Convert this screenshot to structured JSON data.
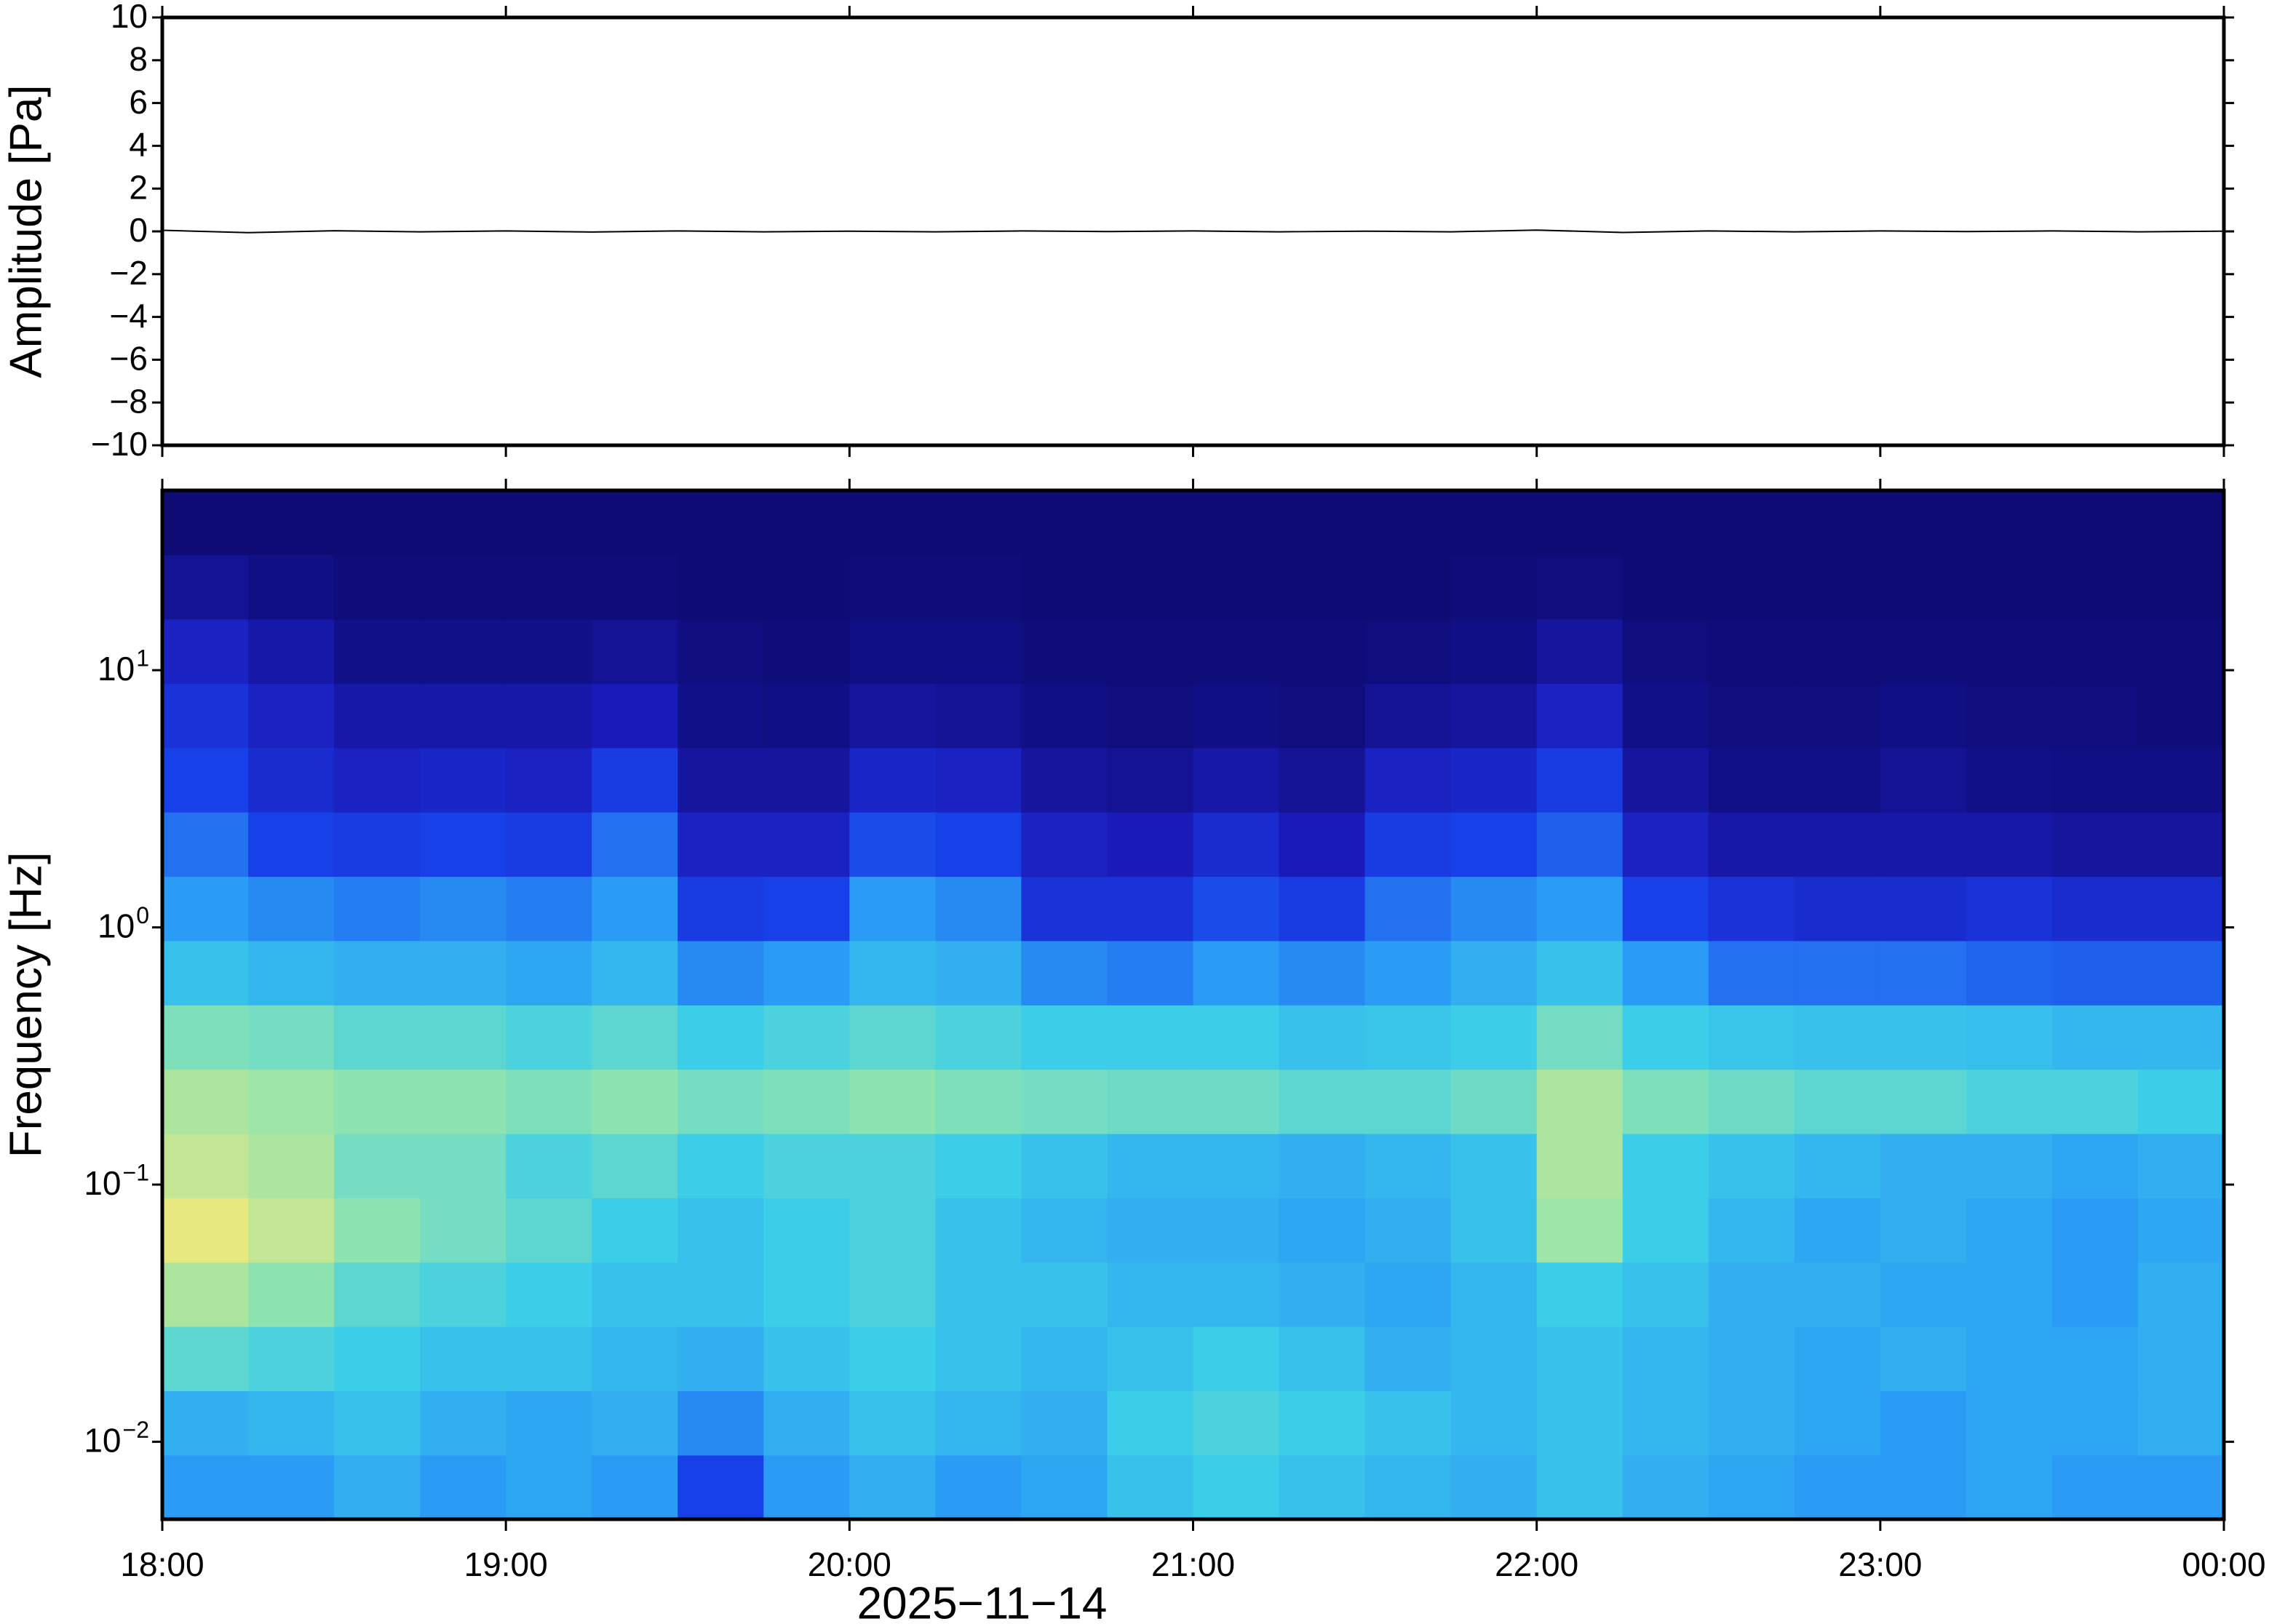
{
  "chart_data": [
    {
      "type": "line",
      "ylabel": "Amplitude [Pa]",
      "color": "#000000",
      "x": [
        18,
        18.25,
        18.5,
        18.75,
        19,
        19.25,
        19.5,
        19.75,
        20,
        20.25,
        20.5,
        20.75,
        21,
        21.25,
        21.5,
        21.75,
        22,
        22.25,
        22.5,
        22.75,
        23,
        23.25,
        23.5,
        23.75,
        24
      ],
      "values": [
        0.05,
        -0.06,
        0.03,
        -0.02,
        0.02,
        -0.03,
        0.02,
        -0.02,
        0.01,
        -0.02,
        0.02,
        -0.01,
        0.02,
        -0.02,
        0.01,
        -0.02,
        0.06,
        -0.05,
        0.02,
        -0.02,
        0.02,
        -0.01,
        0.02,
        -0.02,
        0.01
      ],
      "xlim": [
        18,
        24
      ],
      "ylim": [
        -10,
        10
      ],
      "xticks": [
        18,
        19,
        20,
        21,
        22,
        23,
        24
      ],
      "yticks": [
        {
          "value": -10,
          "label": "−10"
        },
        {
          "value": -8,
          "label": "−8"
        },
        {
          "value": -6,
          "label": "−6"
        },
        {
          "value": -4,
          "label": "−4"
        },
        {
          "value": -2,
          "label": "−2"
        },
        0,
        2,
        4,
        6,
        8,
        10
      ]
    },
    {
      "type": "heatmap",
      "ylabel": "Frequency [Hz]",
      "xlabel": "2025−11−14",
      "xlim": [
        18,
        24
      ],
      "ylim": [
        0.005,
        50
      ],
      "yscale": "log",
      "xticks": [
        {
          "value": 18,
          "label": "18:00"
        },
        {
          "value": 19,
          "label": "19:00"
        },
        {
          "value": 20,
          "label": "20:00"
        },
        {
          "value": 21,
          "label": "21:00"
        },
        {
          "value": 22,
          "label": "22:00"
        },
        {
          "value": 23,
          "label": "23:00"
        },
        {
          "value": 24,
          "label": "00:00"
        }
      ],
      "yticks": [
        {
          "value": 0.01,
          "label": "10",
          "exponent": "−2"
        },
        {
          "value": 0.1,
          "label": "10",
          "exponent": "−1"
        },
        {
          "value": 1,
          "label": "10",
          "exponent": "0"
        },
        {
          "value": 10,
          "label": "10",
          "exponent": "1"
        }
      ],
      "colormap": [
        {
          "value": 0,
          "color": "#0c0a6a"
        },
        {
          "value": 15,
          "color": "#1a1ab8"
        },
        {
          "value": 30,
          "color": "#1840e8"
        },
        {
          "value": 45,
          "color": "#2a9cf5"
        },
        {
          "value": 58,
          "color": "#3ccde8"
        },
        {
          "value": 68,
          "color": "#8ee4b0"
        },
        {
          "value": 80,
          "color": "#e8e880"
        },
        {
          "value": 100,
          "color": "#f0c060"
        }
      ],
      "z": [
        [
          45,
          45,
          50,
          45,
          48,
          45,
          30,
          45,
          50,
          45,
          48,
          55,
          58,
          55,
          52,
          50,
          55,
          50,
          48,
          45,
          45,
          48,
          45,
          45
        ],
        [
          50,
          52,
          55,
          50,
          48,
          50,
          42,
          50,
          55,
          52,
          50,
          58,
          60,
          58,
          55,
          52,
          55,
          52,
          50,
          48,
          45,
          48,
          48,
          50
        ],
        [
          62,
          60,
          58,
          55,
          55,
          52,
          50,
          55,
          58,
          55,
          52,
          55,
          58,
          55,
          50,
          52,
          55,
          52,
          50,
          48,
          50,
          48,
          48,
          50
        ],
        [
          72,
          68,
          62,
          60,
          58,
          55,
          55,
          58,
          60,
          55,
          55,
          52,
          52,
          50,
          48,
          52,
          58,
          55,
          50,
          50,
          48,
          48,
          45,
          50
        ],
        [
          80,
          75,
          68,
          65,
          62,
          58,
          55,
          58,
          60,
          55,
          52,
          50,
          50,
          48,
          50,
          55,
          70,
          58,
          52,
          48,
          50,
          48,
          45,
          48
        ],
        [
          75,
          72,
          65,
          65,
          60,
          62,
          58,
          60,
          60,
          58,
          55,
          52,
          52,
          50,
          52,
          55,
          72,
          58,
          55,
          52,
          50,
          50,
          48,
          50
        ],
        [
          72,
          70,
          68,
          68,
          66,
          68,
          65,
          66,
          68,
          66,
          65,
          64,
          64,
          62,
          62,
          64,
          72,
          66,
          64,
          62,
          62,
          60,
          60,
          58
        ],
        [
          66,
          65,
          62,
          62,
          60,
          62,
          58,
          60,
          62,
          60,
          58,
          58,
          58,
          55,
          56,
          58,
          65,
          58,
          56,
          55,
          55,
          54,
          52,
          52
        ],
        [
          55,
          52,
          50,
          50,
          48,
          52,
          42,
          45,
          52,
          50,
          42,
          40,
          45,
          42,
          45,
          50,
          55,
          45,
          38,
          38,
          38,
          36,
          35,
          35
        ],
        [
          45,
          42,
          40,
          42,
          40,
          45,
          28,
          30,
          45,
          42,
          25,
          25,
          32,
          28,
          38,
          42,
          45,
          30,
          25,
          22,
          22,
          25,
          22,
          22
        ],
        [
          38,
          30,
          28,
          30,
          28,
          38,
          18,
          18,
          32,
          30,
          18,
          15,
          22,
          15,
          28,
          30,
          35,
          18,
          12,
          12,
          12,
          12,
          10,
          10
        ],
        [
          30,
          22,
          18,
          20,
          18,
          28,
          10,
          10,
          20,
          18,
          10,
          8,
          12,
          8,
          18,
          20,
          28,
          10,
          6,
          6,
          8,
          6,
          5,
          5
        ],
        [
          25,
          18,
          12,
          12,
          12,
          15,
          6,
          5,
          10,
          8,
          5,
          4,
          5,
          4,
          8,
          10,
          18,
          6,
          4,
          4,
          5,
          4,
          4,
          3
        ],
        [
          18,
          12,
          6,
          6,
          6,
          8,
          4,
          3,
          5,
          5,
          3,
          3,
          3,
          3,
          4,
          5,
          10,
          4,
          3,
          3,
          3,
          3,
          3,
          3
        ],
        [
          8,
          5,
          3,
          3,
          3,
          3,
          2,
          2,
          3,
          3,
          2,
          2,
          2,
          2,
          2,
          3,
          4,
          2,
          2,
          2,
          2,
          2,
          2,
          2
        ],
        [
          2,
          2,
          2,
          2,
          2,
          2,
          2,
          2,
          2,
          2,
          2,
          2,
          2,
          2,
          2,
          2,
          2,
          2,
          2,
          2,
          2,
          2,
          2,
          2
        ]
      ]
    }
  ]
}
